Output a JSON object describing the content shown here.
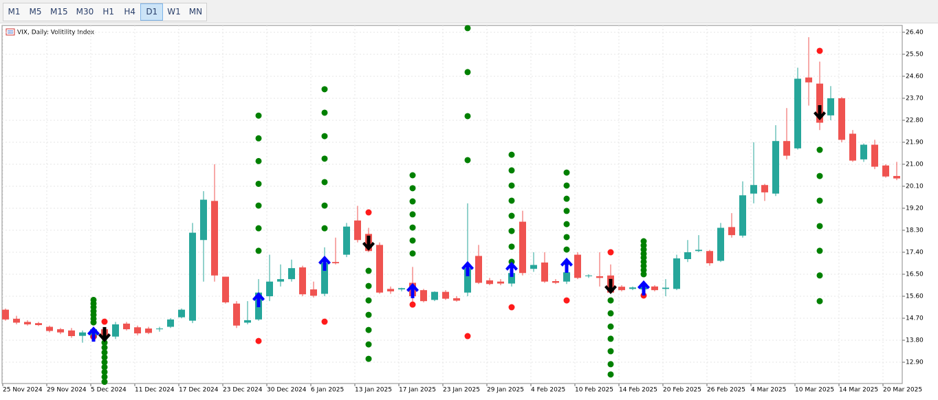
{
  "toolbar": {
    "buttons": [
      "M1",
      "M5",
      "M15",
      "M30",
      "H1",
      "H4",
      "D1",
      "W1",
      "MN"
    ],
    "selected": "D1"
  },
  "chart_data": {
    "type": "candlestick",
    "title": "VIX, Daily:  Volitility Index",
    "categories": [
      "25 Nov 2024",
      null,
      null,
      null,
      "29 Nov 2024",
      null,
      null,
      null,
      "5 Dec 2024",
      null,
      null,
      null,
      "11 Dec 2024",
      null,
      null,
      null,
      "17 Dec 2024",
      null,
      null,
      null,
      "23 Dec 2024",
      null,
      null,
      null,
      "30 Dec 2024",
      null,
      null,
      null,
      "6 Jan 2025",
      null,
      null,
      null,
      "13 Jan 2025",
      null,
      null,
      null,
      "17 Jan 2025",
      null,
      null,
      null,
      "23 Jan 2025",
      null,
      null,
      null,
      "29 Jan 2025",
      null,
      null,
      null,
      "4 Feb 2025",
      null,
      null,
      null,
      "10 Feb 2025",
      null,
      null,
      null,
      "14 Feb 2025",
      null,
      null,
      null,
      "20 Feb 2025",
      null,
      null,
      null,
      "26 Feb 2025",
      null,
      null,
      null,
      "4 Mar 2025",
      null,
      null,
      null,
      "10 Mar 2025",
      null,
      null,
      null,
      "14 Mar 2025",
      null,
      null,
      null,
      "20 Mar 2025",
      null
    ],
    "open": [
      15.05,
      14.68,
      14.55,
      14.5,
      14.35,
      14.25,
      14.2,
      13.98,
      13.9,
      14.25,
      13.95,
      14.48,
      14.33,
      14.28,
      14.25,
      14.35,
      14.74,
      14.6,
      17.9,
      19.5,
      16.4,
      15.3,
      14.52,
      14.65,
      15.6,
      16.2,
      16.3,
      16.78,
      15.88,
      15.7,
      17.0,
      17.3,
      18.7,
      18.15,
      17.7,
      15.9,
      15.88,
      16.15,
      15.85,
      15.45,
      15.78,
      15.52,
      15.75,
      17.25,
      16.25,
      16.2,
      16.12,
      18.65,
      16.72,
      16.98,
      16.22,
      16.2,
      17.3,
      16.42,
      16.42,
      16.45,
      15.99,
      15.9,
      15.88,
      16.0,
      15.9,
      15.9,
      17.12,
      17.45,
      17.45,
      17.05,
      18.43,
      18.08,
      19.8,
      20.15,
      19.8,
      21.95,
      21.65,
      24.55,
      24.3,
      23.0,
      23.7,
      22.25,
      21.2,
      21.8,
      20.95,
      20.52
    ],
    "high": [
      15.1,
      14.8,
      14.62,
      14.55,
      14.4,
      14.3,
      14.3,
      14.2,
      14.35,
      14.3,
      14.55,
      14.55,
      14.4,
      14.35,
      14.35,
      14.7,
      15.1,
      18.6,
      19.9,
      21.0,
      16.4,
      15.4,
      15.4,
      16.3,
      17.3,
      16.9,
      17.1,
      16.85,
      16.2,
      17.6,
      18.0,
      18.6,
      19.3,
      18.4,
      17.8,
      16.0,
      15.95,
      16.8,
      15.9,
      15.8,
      15.85,
      15.6,
      19.4,
      17.7,
      16.35,
      16.3,
      16.7,
      19.1,
      17.4,
      17.4,
      16.3,
      16.6,
      17.4,
      16.5,
      17.4,
      16.9,
      16.05,
      16.0,
      16.1,
      16.05,
      16.3,
      17.3,
      17.9,
      18.1,
      17.5,
      18.6,
      19.0,
      20.3,
      21.9,
      20.2,
      22.6,
      23.3,
      24.95,
      26.2,
      25.2,
      24.2,
      23.75,
      22.4,
      21.85,
      22.0,
      21.0,
      21.1
    ],
    "low": [
      14.6,
      14.45,
      14.4,
      14.38,
      14.12,
      14.05,
      13.9,
      13.7,
      13.8,
      13.85,
      13.85,
      14.2,
      14.0,
      14.05,
      14.15,
      14.3,
      14.7,
      14.5,
      16.2,
      16.2,
      15.3,
      14.3,
      14.45,
      14.6,
      15.4,
      16.0,
      16.2,
      15.6,
      15.55,
      15.6,
      16.9,
      17.2,
      17.8,
      17.4,
      15.7,
      15.7,
      15.8,
      15.3,
      15.35,
      15.4,
      15.45,
      15.38,
      15.6,
      16.1,
      16.05,
      16.05,
      16.0,
      16.45,
      16.6,
      16.15,
      16.1,
      16.1,
      16.3,
      16.35,
      16.0,
      15.7,
      15.8,
      15.85,
      15.8,
      15.8,
      15.6,
      15.85,
      17.0,
      17.4,
      16.85,
      17.0,
      18.0,
      18.0,
      19.4,
      19.5,
      19.7,
      21.2,
      21.6,
      23.4,
      22.4,
      22.8,
      21.9,
      21.1,
      21.1,
      20.8,
      20.45,
      20.35
    ],
    "close": [
      14.65,
      14.52,
      14.45,
      14.42,
      14.18,
      14.12,
      13.97,
      14.12,
      14.25,
      14.0,
      14.45,
      14.25,
      14.08,
      14.1,
      14.28,
      14.65,
      15.05,
      18.2,
      19.55,
      16.45,
      15.35,
      14.4,
      14.62,
      15.75,
      16.2,
      16.3,
      16.75,
      15.68,
      15.62,
      16.97,
      16.95,
      18.45,
      17.9,
      17.45,
      15.75,
      15.8,
      15.93,
      15.6,
      15.4,
      15.78,
      15.5,
      15.42,
      16.75,
      16.15,
      16.1,
      16.12,
      16.55,
      16.55,
      16.88,
      16.2,
      16.15,
      16.58,
      16.35,
      16.45,
      16.35,
      15.75,
      15.85,
      15.96,
      16.05,
      15.85,
      15.95,
      17.15,
      17.4,
      17.5,
      16.95,
      18.4,
      18.1,
      19.73,
      20.15,
      19.85,
      21.95,
      21.35,
      24.5,
      24.35,
      22.7,
      23.7,
      22.0,
      21.15,
      21.8,
      20.9,
      20.5,
      20.42
    ],
    "up_color": "#26a69a",
    "down_color": "#ef5350",
    "ylim": [
      12.03,
      26.68
    ],
    "yticks": [
      {
        "value": 26.4,
        "label": "26.40"
      },
      {
        "value": 25.5,
        "label": "25.50"
      },
      {
        "value": 24.6,
        "label": "24.60"
      },
      {
        "value": 23.7,
        "label": "23.70"
      },
      {
        "value": 22.8,
        "label": "22.80"
      },
      {
        "value": 21.9,
        "label": "21.90"
      },
      {
        "value": 21.0,
        "label": "21.00"
      },
      {
        "value": 20.1,
        "label": "20.10"
      },
      {
        "value": 19.2,
        "label": "19.20"
      },
      {
        "value": 18.3,
        "label": "18.30"
      },
      {
        "value": 17.4,
        "label": "17.40"
      },
      {
        "value": 16.5,
        "label": "16.50"
      },
      {
        "value": 15.6,
        "label": "15.60"
      },
      {
        "value": 14.7,
        "label": "14.70"
      },
      {
        "value": 13.8,
        "label": "13.80"
      },
      {
        "value": 12.9,
        "label": "12.90"
      }
    ],
    "grid": true,
    "up_arrows": {
      "color": "#0000ff",
      "x": [
        8,
        23,
        29,
        37,
        42,
        46,
        51,
        58
      ],
      "values": [
        14.36,
        15.77,
        17.26,
        16.14,
        17.04,
        17.01,
        17.18,
        16.25
      ]
    },
    "down_arrows": {
      "color": "#000000",
      "x": [
        9,
        33,
        55,
        74
      ],
      "values": [
        13.72,
        17.46,
        15.69,
        22.8
      ]
    },
    "red_dots": {
      "color": "#ff1a1a",
      "x": [
        8,
        9,
        23,
        29,
        33,
        37,
        42,
        46,
        51,
        55,
        58,
        74
      ],
      "values": [
        13.94,
        14.56,
        13.77,
        14.56,
        19.03,
        15.26,
        13.97,
        15.15,
        15.43,
        17.4,
        15.63,
        25.64
      ]
    },
    "green_dots": {
      "color": "#008000",
      "columns": [
        {
          "x": 8,
          "values": [
            15.45,
            15.3,
            15.15,
            14.99,
            14.84,
            14.68,
            14.53
          ]
        },
        {
          "x": 9,
          "values": [
            13.9,
            13.7,
            13.5,
            13.3,
            13.1,
            12.9,
            12.7,
            12.5,
            12.3,
            12.1
          ]
        },
        {
          "x": 23,
          "values": [
            22.99,
            22.06,
            21.13,
            20.2,
            19.31,
            18.38,
            17.46
          ]
        },
        {
          "x": 29,
          "values": [
            24.07,
            23.11,
            22.15,
            21.23,
            20.27,
            19.31,
            18.38
          ]
        },
        {
          "x": 33,
          "values": [
            16.64,
            16.02,
            15.43,
            14.84,
            14.22,
            13.63,
            13.04
          ]
        },
        {
          "x": 37,
          "values": [
            20.55,
            20.02,
            19.48,
            18.95,
            18.41,
            17.88,
            17.35
          ]
        },
        {
          "x": 42,
          "values": [
            26.57,
            24.77,
            22.97,
            21.17
          ]
        },
        {
          "x": 46,
          "values": [
            21.39,
            20.75,
            20.13,
            19.51,
            18.89,
            18.27,
            17.63,
            17.01
          ]
        },
        {
          "x": 51,
          "values": [
            20.66,
            20.13,
            19.59,
            19.09,
            18.55,
            18.02,
            17.51,
            16.98
          ]
        },
        {
          "x": 55,
          "values": [
            15.43,
            14.9,
            14.36,
            13.86,
            13.35,
            12.82,
            12.4
          ]
        },
        {
          "x": 58,
          "values": [
            17.85,
            17.68,
            17.51,
            17.34,
            17.18,
            17.01,
            16.84,
            16.67,
            16.5
          ]
        },
        {
          "x": 74,
          "values": [
            21.59,
            20.52,
            19.51,
            18.47,
            17.46,
            16.45,
            15.4
          ]
        }
      ]
    }
  }
}
